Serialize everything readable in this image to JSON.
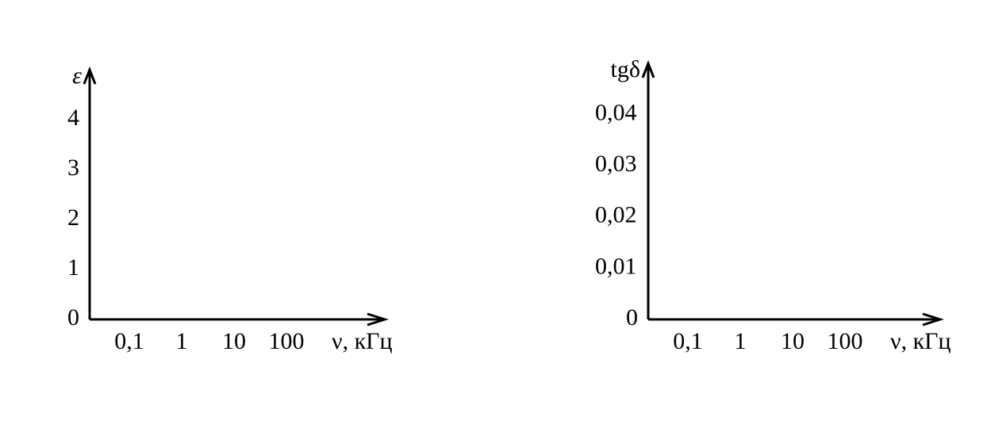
{
  "chart_data": [
    {
      "type": "axes",
      "y_label": "ε",
      "x_label": "ν, кГц",
      "categories": [
        "0,1",
        "1",
        "10",
        "100"
      ],
      "ylim": [
        0,
        5
      ],
      "yticks": [
        0,
        1,
        2,
        3,
        4
      ]
    },
    {
      "type": "axes",
      "y_label": "tgδ",
      "x_label": "ν, кГц",
      "categories": [
        "0,1",
        "1",
        "10",
        "100"
      ],
      "ylim": [
        0,
        0.05
      ],
      "yticks": [
        0,
        {
          "value": 0.01,
          "label": "0,01"
        },
        {
          "value": 0.02,
          "label": "0,02"
        },
        {
          "value": 0.03,
          "label": "0,03"
        },
        {
          "value": 0.04,
          "label": "0,04"
        }
      ]
    }
  ]
}
